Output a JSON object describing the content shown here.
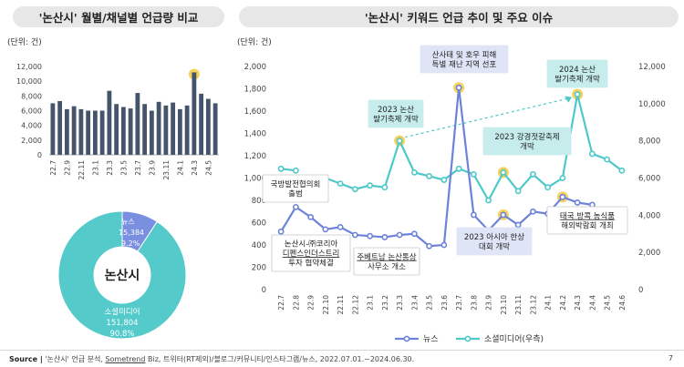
{
  "left_title": "'논산시' 월별/채널별 언급량 비교",
  "right_title": "'논산시' 키워드 언급 추이 및 주요 이슈",
  "unit_label_left": "(단위: 건)",
  "unit_label_right": "(단위: 건)",
  "colors": {
    "bar": "#44546a",
    "news": "#6c83d9",
    "social": "#4ec8c8",
    "highlight": "#f5cc4a",
    "donut_social": "#55caca",
    "donut_news": "#7b8fe0"
  },
  "chart_data": [
    {
      "type": "bar",
      "categories": [
        "22.7",
        "22.8",
        "22.9",
        "22.10",
        "22.11",
        "22.12",
        "23.1",
        "23.2",
        "23.3",
        "23.4",
        "23.5",
        "23.6",
        "23.7",
        "23.8",
        "23.9",
        "23.10",
        "23.11",
        "23.12",
        "24.1",
        "24.2",
        "24.3",
        "24.4",
        "24.5",
        "24.6"
      ],
      "tick_labels": [
        "22.7",
        "22.9",
        "22.11",
        "23.1",
        "23.3",
        "23.5",
        "23.7",
        "23.9",
        "23.11",
        "24.1",
        "24.3",
        "24.5"
      ],
      "values": [
        7000,
        7300,
        6200,
        6600,
        6200,
        6000,
        6000,
        6000,
        8700,
        6900,
        6500,
        6300,
        8400,
        6900,
        6000,
        7200,
        6700,
        7100,
        6200,
        6700,
        11200,
        8300,
        7600,
        7000
      ],
      "ylim": [
        0,
        12000
      ],
      "yticks": [
        "0",
        "2,000",
        "4,000",
        "6,000",
        "8,000",
        "10,000",
        "12,000"
      ],
      "highlight_index": 20
    },
    {
      "type": "pie",
      "center_label": "논산시",
      "slices": [
        {
          "name": "뉴스",
          "value": 15384,
          "value_label": "15,384",
          "percent": "9.2%"
        },
        {
          "name": "소셜미디어",
          "value": 151804,
          "value_label": "151,804",
          "percent": "90.8%"
        }
      ]
    },
    {
      "type": "line",
      "categories": [
        "22.7",
        "22.8",
        "22.9",
        "22.10",
        "22.11",
        "22.12",
        "23.1",
        "23.2",
        "23.3",
        "23.4",
        "23.5",
        "23.6",
        "23.7",
        "23.8",
        "23.9",
        "23.10",
        "23.11",
        "23.12",
        "24.1",
        "24.2",
        "24.3",
        "24.4",
        "24.5",
        "24.6"
      ],
      "tick_labels": [
        "22.7",
        "22.8",
        "22.9",
        "22.10",
        "22.11",
        "22.12",
        "23.1",
        "23.2",
        "23.3",
        "23.4",
        "23.5",
        "23.6",
        "23.7",
        "23.8",
        "23.9",
        "23.10",
        "23.11",
        "23.12",
        "24.1",
        "24.2",
        "24.3",
        "24.4",
        "24.5",
        "24.6"
      ],
      "series": [
        {
          "name": "뉴스",
          "axis": "left",
          "values": [
            520,
            740,
            650,
            540,
            560,
            490,
            480,
            470,
            490,
            500,
            390,
            400,
            1810,
            670,
            530,
            670,
            580,
            700,
            680,
            830,
            780,
            760,
            null,
            null
          ]
        },
        {
          "name": "소셜미디어(우측)",
          "axis": "right",
          "values": [
            6500,
            6400,
            null,
            6000,
            5700,
            5400,
            5600,
            5500,
            8000,
            6300,
            6100,
            5900,
            6500,
            6200,
            4800,
            6300,
            5300,
            6200,
            5500,
            6000,
            10500,
            7300,
            7000,
            6400
          ]
        }
      ],
      "ylim_left": [
        0,
        2000
      ],
      "ylim_right": [
        0,
        12000
      ],
      "yticks_left": [
        "0",
        "200",
        "400",
        "600",
        "800",
        "1,000",
        "1,200",
        "1,400",
        "1,600",
        "1,800",
        "2,000"
      ],
      "yticks_right": [
        "0",
        "2,000",
        "4,000",
        "6,000",
        "8,000",
        "10,000",
        "12,000"
      ],
      "annotations": [
        {
          "text": [
            "국방발전협의회",
            "출범"
          ],
          "style": "white"
        },
        {
          "text": [
            "논산시-㈜코리아",
            "디펜스인더스트리",
            "투자 협약체결"
          ],
          "style": "white",
          "underline_line": 1
        },
        {
          "text": [
            "주베트남 논산통상",
            "사무소 개소"
          ],
          "style": "white",
          "underline_line": 0
        },
        {
          "text": [
            "2023 논산",
            "딸기축제 개막"
          ],
          "style": "teal"
        },
        {
          "text": [
            "산사태 및 호우 피해",
            "특별 재난 지역 선포"
          ],
          "style": "blue"
        },
        {
          "text": [
            "2023 아시아 한상",
            "대회 개막"
          ],
          "style": "blue"
        },
        {
          "text": [
            "2023 강경젓갈축제",
            "개막"
          ],
          "style": "teal"
        },
        {
          "text": [
            "2024 논산",
            "딸기축제 개막"
          ],
          "style": "teal"
        },
        {
          "text": [
            "태국 방콕 농식품",
            "해외박람회 개최"
          ],
          "style": "white",
          "underline_line": 0
        }
      ],
      "legend": [
        "뉴스",
        "소셜미디어(우측)"
      ]
    }
  ],
  "footer": {
    "source_label": "Source |",
    "source_text_a": "'논산시' 언급 분석, ",
    "source_text_link": "Sometrend",
    "source_text_b": " Biz, 트위터(RT제외)/블로그/커뮤니티/인스타그램/뉴스, 2022.07.01.~2024.06.30.",
    "page_number": "7"
  }
}
